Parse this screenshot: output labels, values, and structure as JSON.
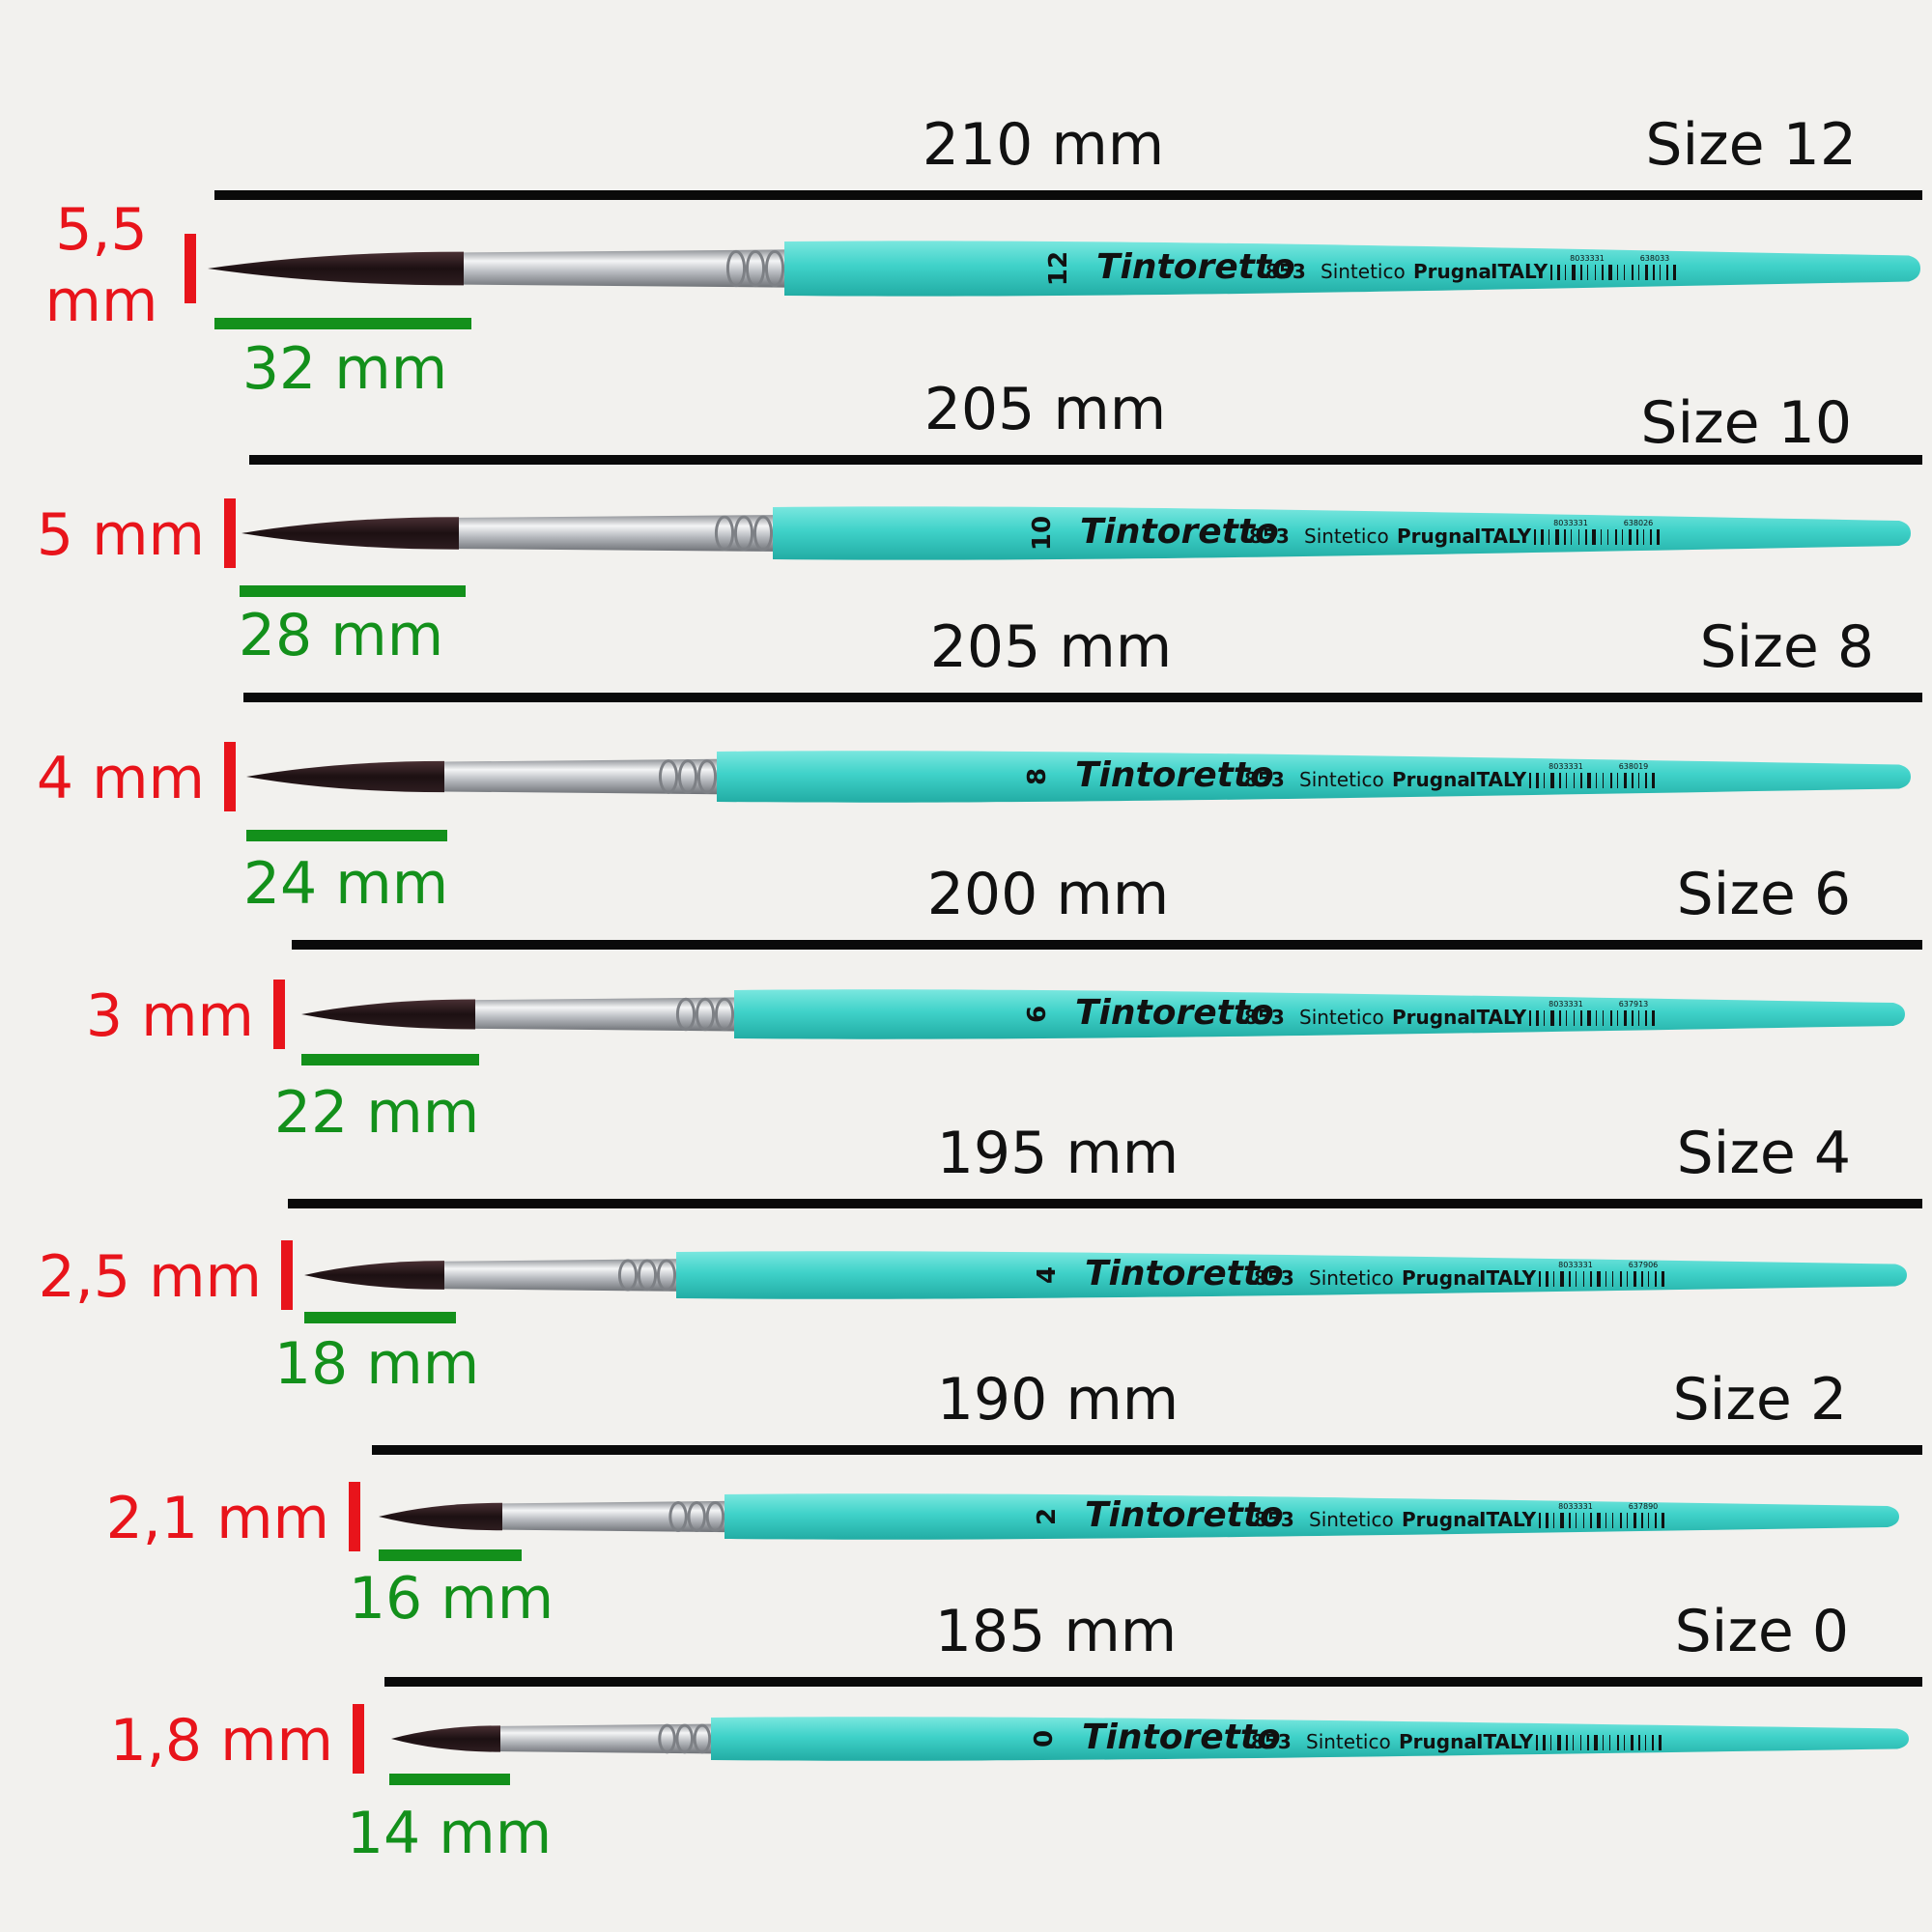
{
  "brushes": [
    {
      "size_label": "Size 12",
      "length": "210 mm",
      "width": [
        "5,5",
        "mm"
      ],
      "hair": "32 mm",
      "handle_number": "12",
      "brand": "Tintoretto",
      "model": "853",
      "material_a": "Sintetico",
      "material_b": "Prugna",
      "origin": "ITALY",
      "code_a": "8033331",
      "code_b": "638033"
    },
    {
      "size_label": "Size 10",
      "length": "205 mm",
      "width": [
        "5 mm"
      ],
      "hair": "28 mm",
      "handle_number": "10",
      "brand": "Tintoretto",
      "model": "853",
      "material_a": "Sintetico",
      "material_b": "Prugna",
      "origin": "ITALY",
      "code_a": "8033331",
      "code_b": "638026"
    },
    {
      "size_label": "Size 8",
      "length": "205 mm",
      "width": [
        "4 mm"
      ],
      "hair": "24 mm",
      "handle_number": "8",
      "brand": "Tintoretto",
      "model": "853",
      "material_a": "Sintetico",
      "material_b": "Prugna",
      "origin": "ITALY",
      "code_a": "8033331",
      "code_b": "638019"
    },
    {
      "size_label": "Size 6",
      "length": "200 mm",
      "width": [
        "3 mm"
      ],
      "hair": "22 mm",
      "handle_number": "6",
      "brand": "Tintoretto",
      "model": "853",
      "material_a": "Sintetico",
      "material_b": "Prugna",
      "origin": "ITALY",
      "code_a": "8033331",
      "code_b": "637913"
    },
    {
      "size_label": "Size 4",
      "length": "195 mm",
      "width": [
        "2,5 mm"
      ],
      "hair": "18 mm",
      "handle_number": "4",
      "brand": "Tintoretto",
      "model": "853",
      "material_a": "Sintetico",
      "material_b": "Prugna",
      "origin": "ITALY",
      "code_a": "8033331",
      "code_b": "637906"
    },
    {
      "size_label": "Size 2",
      "length": "190 mm",
      "width": [
        "2,1 mm"
      ],
      "hair": "16 mm",
      "handle_number": "2",
      "brand": "Tintoretto",
      "model": "853",
      "material_a": "Sintetico",
      "material_b": "Prugna",
      "origin": "ITALY",
      "code_a": "8033331",
      "code_b": "637890"
    },
    {
      "size_label": "Size 0",
      "length": "185 mm",
      "width": [
        "1,8 mm"
      ],
      "hair": "14 mm",
      "handle_number": "0",
      "brand": "Tintoretto",
      "model": "853",
      "material_a": "Sintetico",
      "material_b": "Prugna",
      "origin": "ITALY",
      "code_a": "",
      "code_b": ""
    }
  ],
  "colors": {
    "background": "#f2f1ee",
    "handle": "#3fd2c9",
    "handle_dark": "#26b3ab",
    "ferrule": "#c9ccd0",
    "hair": "#2a1a1c",
    "length_line": "#0a0a0a",
    "width_marker": "#e8141b",
    "hair_line": "#13901b"
  }
}
